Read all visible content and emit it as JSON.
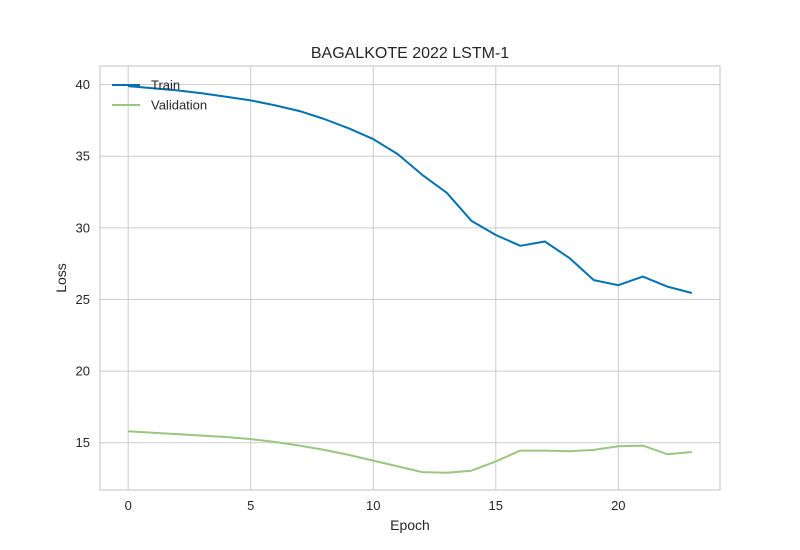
{
  "chart_data": {
    "type": "line",
    "title": "BAGALKOTE 2022 LSTM-1",
    "xlabel": "Epoch",
    "ylabel": "Loss",
    "xlim": [
      -1.15,
      24.15
    ],
    "ylim": [
      11.7,
      41.3
    ],
    "xticks": [
      0,
      5,
      10,
      15,
      20
    ],
    "yticks": [
      15,
      20,
      25,
      30,
      35,
      40
    ],
    "grid": true,
    "legend_position": "top-left",
    "x": [
      0,
      1,
      2,
      3,
      4,
      5,
      6,
      7,
      8,
      9,
      10,
      11,
      12,
      13,
      14,
      15,
      16,
      17,
      18,
      19,
      20,
      21,
      22,
      23
    ],
    "series": [
      {
        "name": "Train",
        "color": "#0072b2",
        "values": [
          39.9,
          39.75,
          39.6,
          39.4,
          39.15,
          38.9,
          38.55,
          38.15,
          37.6,
          36.95,
          36.2,
          35.15,
          33.7,
          32.45,
          30.5,
          29.5,
          28.75,
          29.05,
          27.9,
          26.35,
          26.0,
          26.6,
          25.9,
          25.45
        ]
      },
      {
        "name": "Validation",
        "color": "#9bc67f",
        "values": [
          15.8,
          15.7,
          15.6,
          15.5,
          15.4,
          15.25,
          15.05,
          14.8,
          14.5,
          14.15,
          13.75,
          13.35,
          12.95,
          12.9,
          13.05,
          13.7,
          14.45,
          14.45,
          14.4,
          14.5,
          14.75,
          14.8,
          14.2,
          14.35
        ]
      }
    ]
  }
}
